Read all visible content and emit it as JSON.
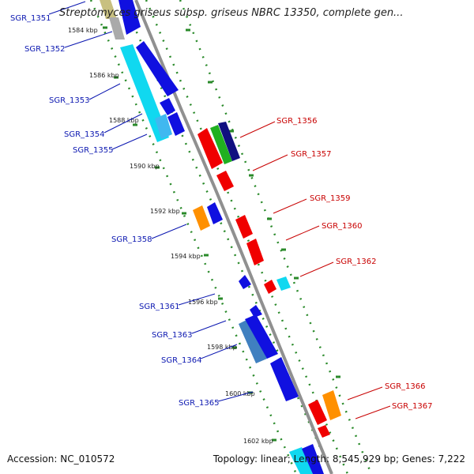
{
  "title": "Streptomyces griseus subsp. griseus NBRC 13350, complete gen...",
  "footer": {
    "accession": "Accession: NC_010572",
    "summary": "Topology: linear; Length: 8,545,929 bp; Genes: 7,222"
  },
  "colors": {
    "blue_gene": "#1010e0",
    "red_gene": "#f00000",
    "cyan_gene": "#10d8f0",
    "orange_gene": "#ff9000",
    "navy_gene": "#101080",
    "green_gene": "#20b020",
    "olive_gene": "#c8c080",
    "axis": "#909090",
    "dots": "#2a8a2a",
    "blue_label": "#0a16b0",
    "red_label": "#c80000"
  },
  "scale_labels": [
    "1584 kbp",
    "1586 kbp",
    "1588 kbp",
    "1590 kbp",
    "1592 kbp",
    "1594 kbp",
    "1596 kbp",
    "1598 kbp",
    "1600 kbp",
    "1602 kbp"
  ],
  "left_genes": [
    "SGR_1351",
    "SGR_1352",
    "SGR_1353",
    "SGR_1354",
    "SGR_1355",
    "SGR_1358",
    "SGR_1361",
    "SGR_1363",
    "SGR_1364",
    "SGR_1365"
  ],
  "right_genes": [
    "SGR_1356",
    "SGR_1357",
    "SGR_1359",
    "SGR_1360",
    "SGR_1362",
    "SGR_1366",
    "SGR_1367"
  ]
}
